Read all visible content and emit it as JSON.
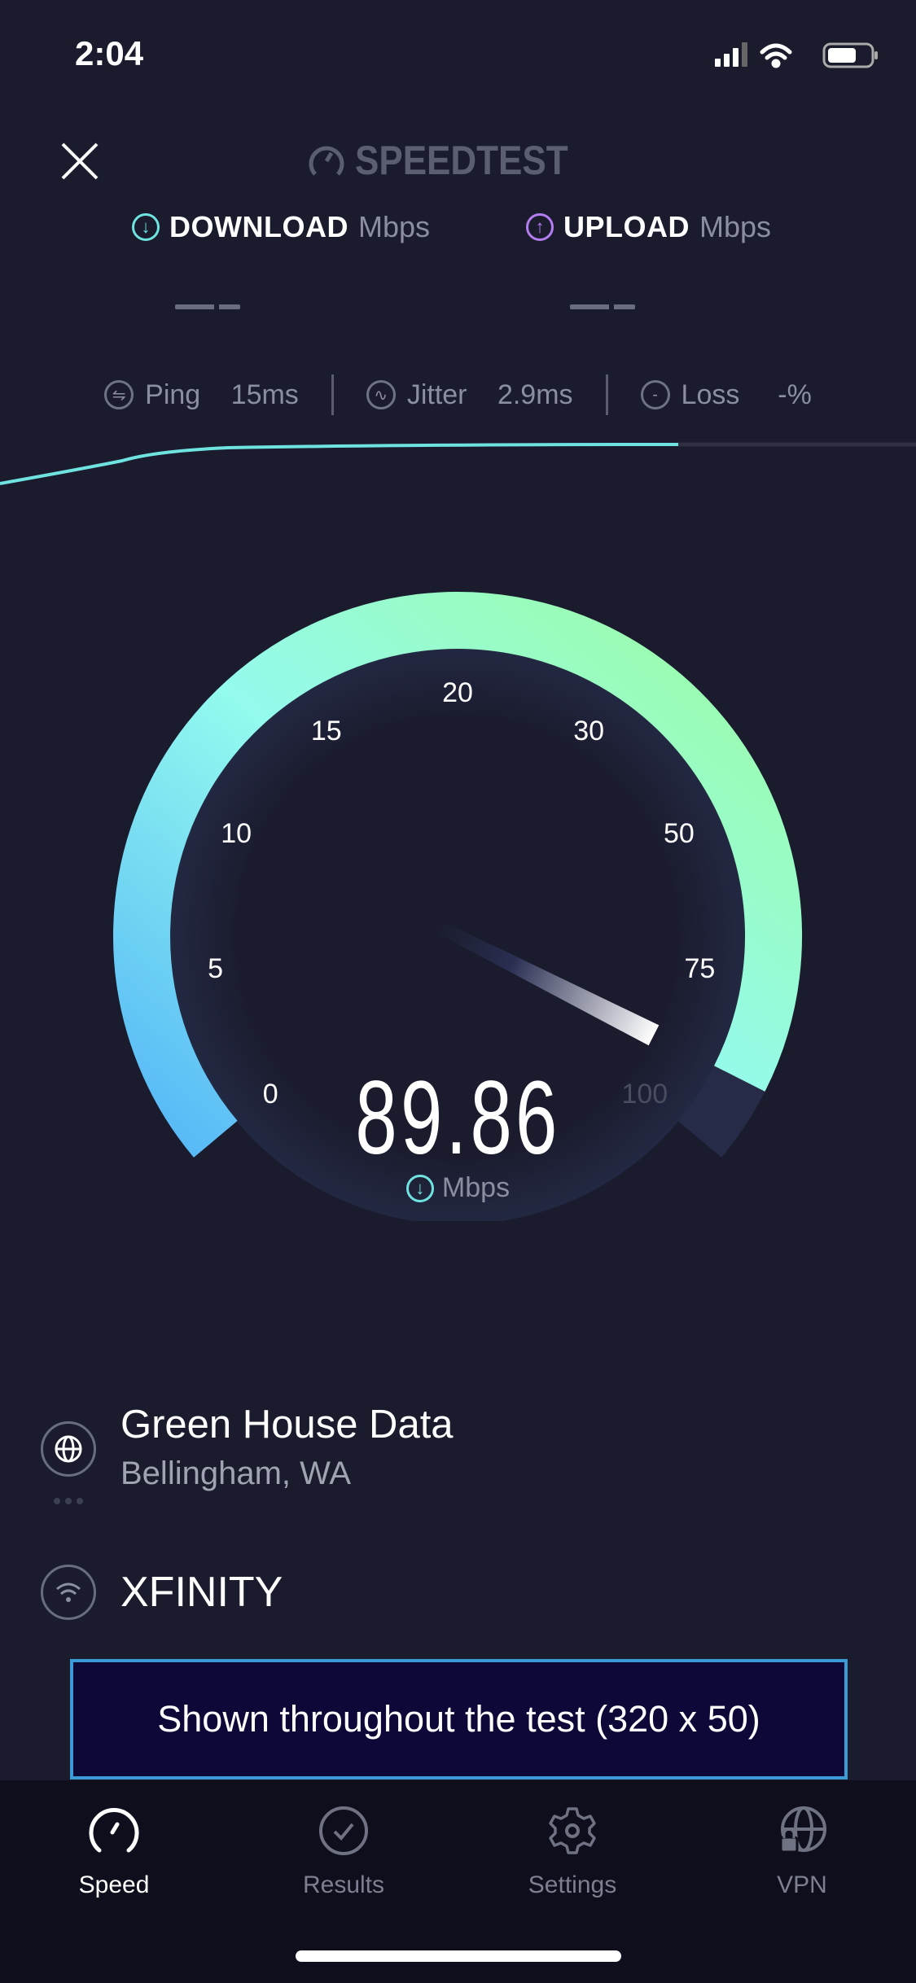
{
  "status_bar": {
    "time": "2:04"
  },
  "header": {
    "logo": "SPEEDTEST",
    "close_icon": "close-icon"
  },
  "results": {
    "download": {
      "label": "DOWNLOAD",
      "unit": "Mbps",
      "value": "— —",
      "color": "#6fe3e0"
    },
    "upload": {
      "label": "UPLOAD",
      "unit": "Mbps",
      "value": "— —",
      "color": "#b37cf0"
    }
  },
  "stats": {
    "ping": {
      "label": "Ping",
      "value": "15",
      "unit": "ms"
    },
    "jitter": {
      "label": "Jitter",
      "value": "2.9",
      "unit": "ms"
    },
    "loss": {
      "label": "Loss",
      "value": "-",
      "unit": "%"
    }
  },
  "gauge": {
    "ticks": [
      "0",
      "5",
      "10",
      "15",
      "20",
      "30",
      "50",
      "75",
      "100"
    ],
    "value": 89.86,
    "value_text": "89.86",
    "unit": "Mbps",
    "colors": {
      "start": "#55b6f7",
      "mid": "#94fbee",
      "end": "#9dfca0",
      "track": "#262b47"
    }
  },
  "server": {
    "name": "Green House Data",
    "location": "Bellingham, WA"
  },
  "provider": {
    "name": "XFINITY"
  },
  "ad": {
    "text": "Shown throughout the test (320 x 50)"
  },
  "tabs": [
    {
      "label": "Speed",
      "icon": "speedometer-icon",
      "active": true
    },
    {
      "label": "Results",
      "icon": "checkmark-circle-icon"
    },
    {
      "label": "Settings",
      "icon": "gear-icon"
    },
    {
      "label": "VPN",
      "icon": "globe-lock-icon"
    }
  ]
}
